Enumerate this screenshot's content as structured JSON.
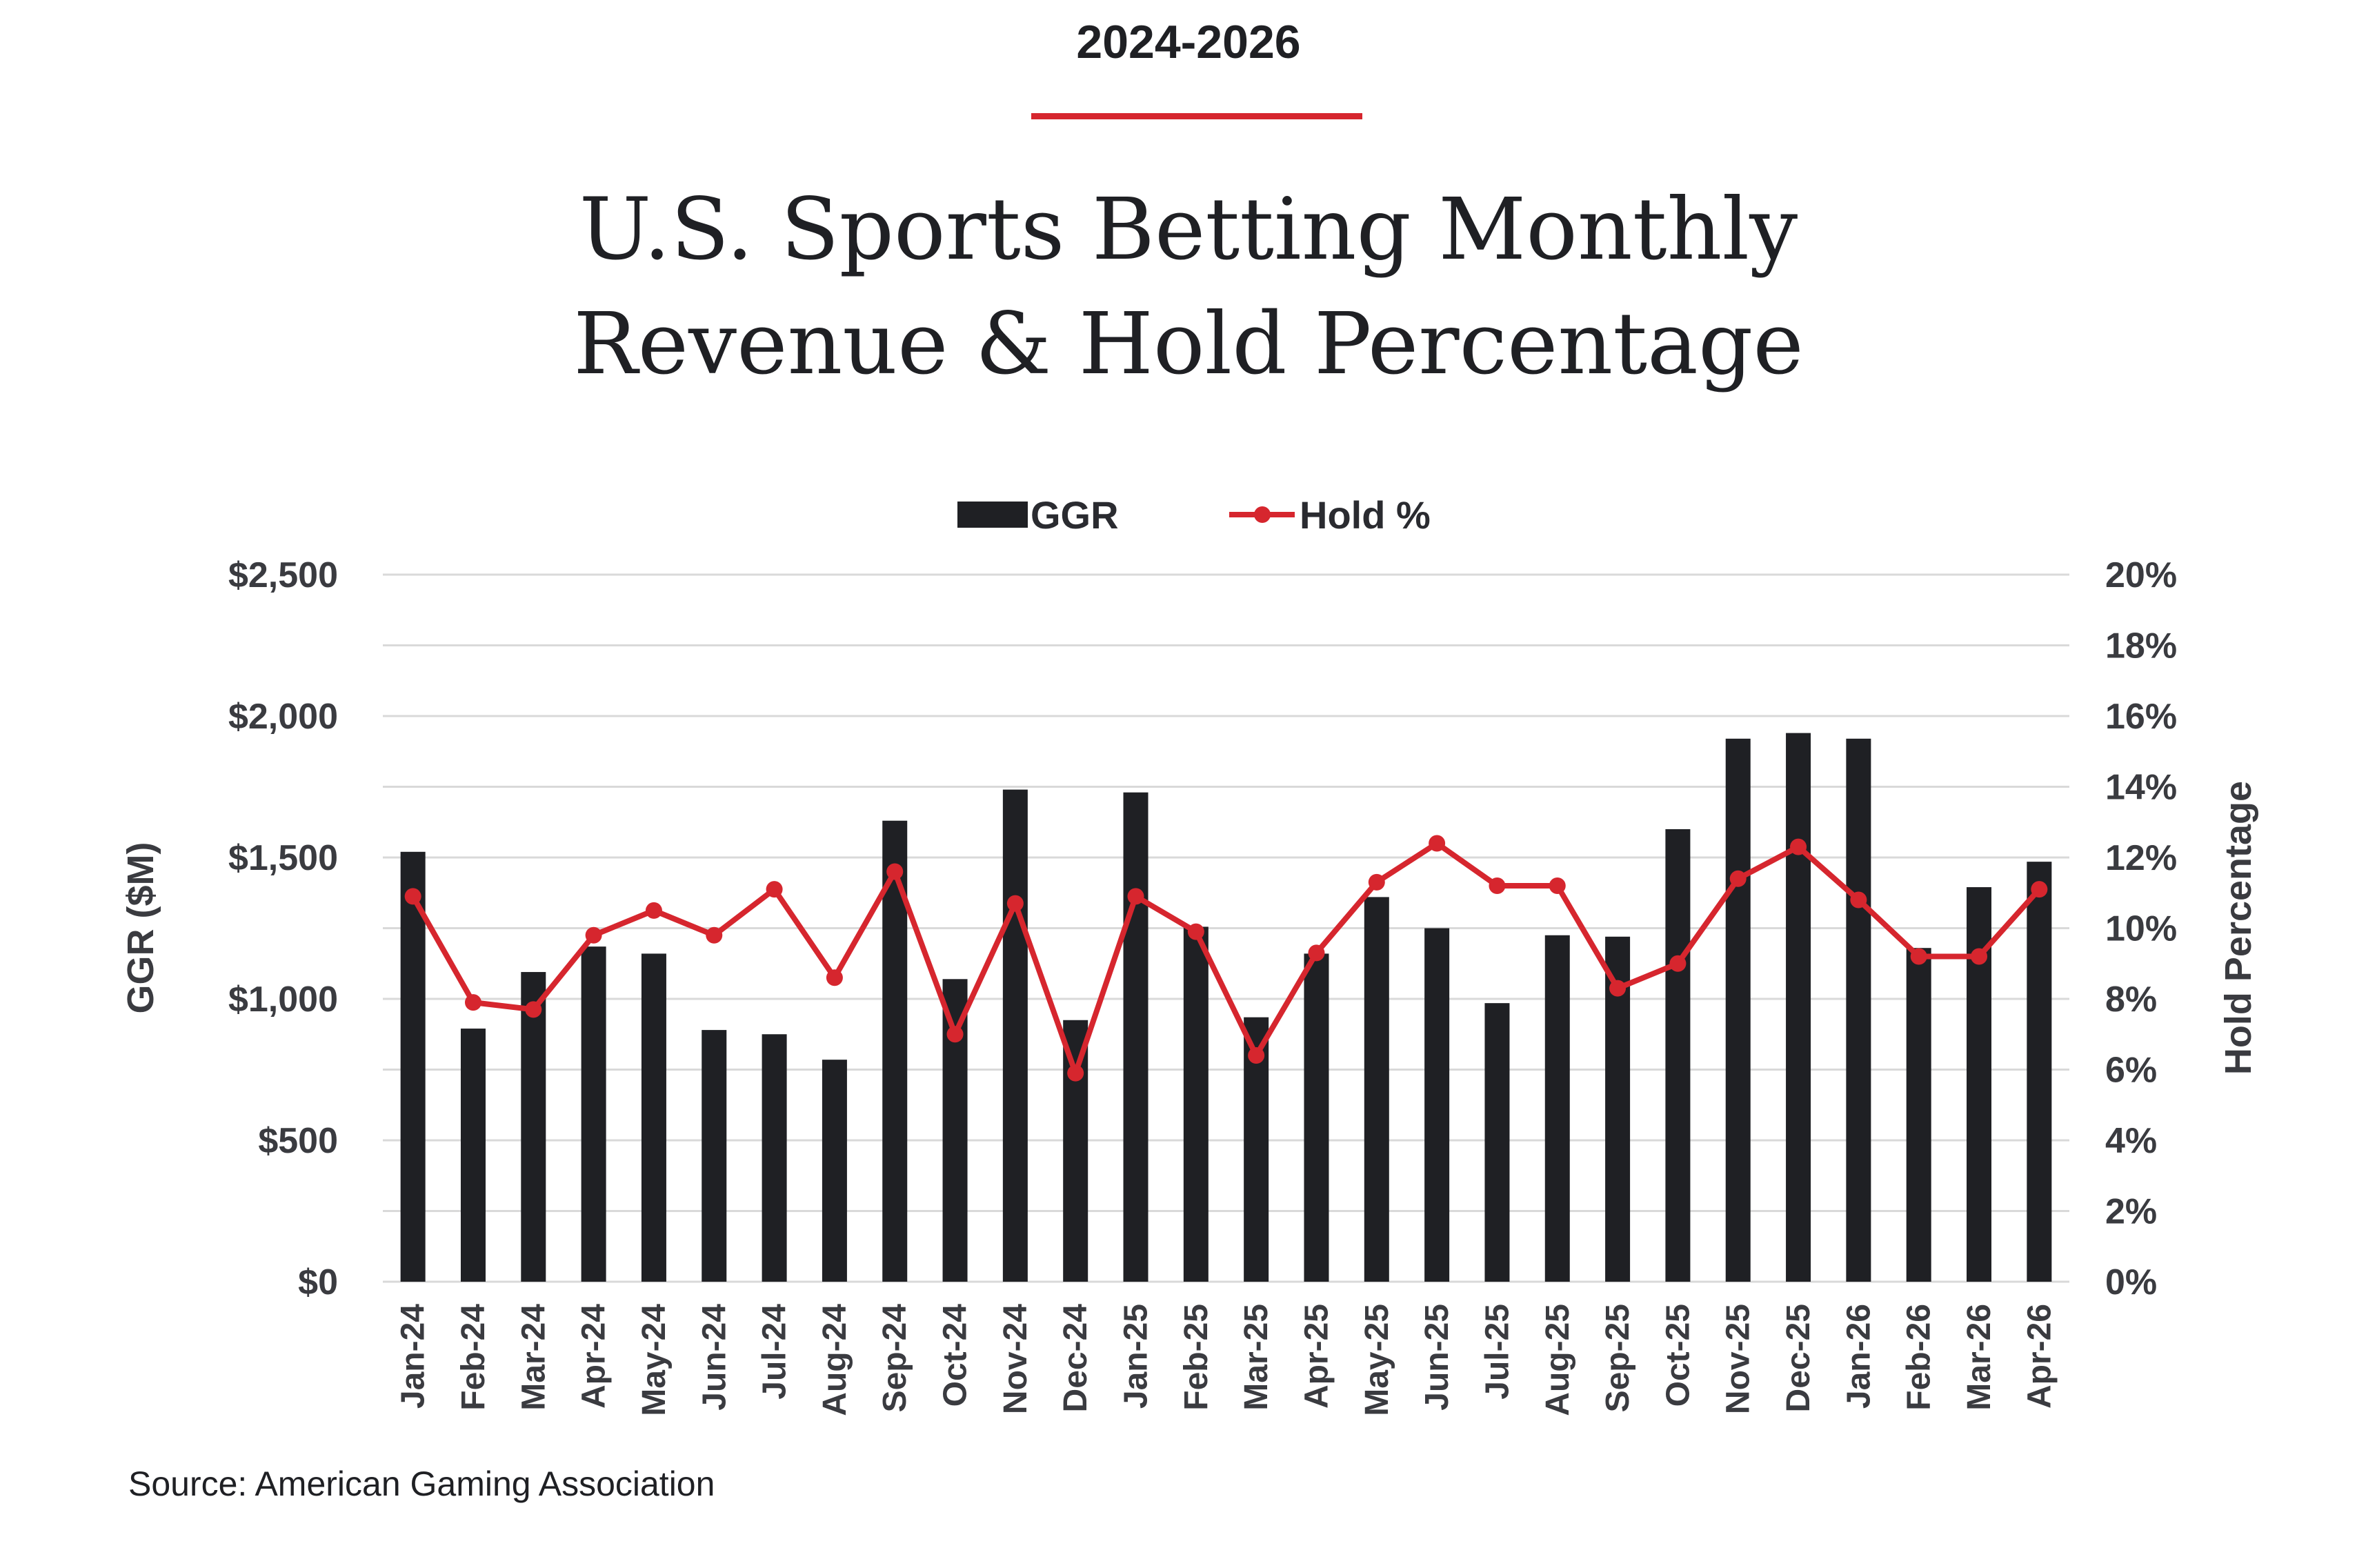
{
  "header": {
    "kicker": "2024-2026",
    "title_line1": "U.S. Sports Betting Monthly",
    "title_line2": "Revenue & Hold Percentage"
  },
  "footer": {
    "source": "Source: American Gaming Association"
  },
  "colors": {
    "bar": "#1f2024",
    "line": "#d6262e",
    "grid": "#d9d9d9",
    "accent_rule": "#d6262e"
  },
  "chart_data": {
    "type": "bar",
    "categories": [
      "Jan-24",
      "Feb-24",
      "Mar-24",
      "Apr-24",
      "May-24",
      "Jun-24",
      "Jul-24",
      "Aug-24",
      "Sep-24",
      "Oct-24",
      "Nov-24",
      "Dec-24",
      "Jan-25",
      "Feb-25",
      "Mar-25",
      "Apr-25",
      "May-25",
      "Jun-25",
      "Jul-25",
      "Aug-25",
      "Sep-25",
      "Oct-25",
      "Nov-25",
      "Dec-25",
      "Jan-26",
      "Feb-26",
      "Mar-26",
      "Apr-26"
    ],
    "series": [
      {
        "name": "GGR",
        "type": "bar",
        "axis": "left",
        "values": [
          1520,
          895,
          1095,
          1185,
          1160,
          890,
          875,
          785,
          1630,
          1070,
          1740,
          925,
          1730,
          1255,
          935,
          1160,
          1360,
          1250,
          985,
          1225,
          1220,
          1600,
          1920,
          1940,
          1920,
          1180,
          1395,
          1485
        ]
      },
      {
        "name": "Hold %",
        "type": "line",
        "axis": "right",
        "values": [
          10.9,
          7.9,
          7.7,
          9.8,
          10.5,
          9.8,
          11.1,
          8.6,
          11.6,
          7.0,
          10.7,
          5.9,
          10.9,
          9.9,
          6.4,
          9.3,
          11.3,
          12.4,
          11.2,
          11.2,
          8.3,
          9.0,
          11.4,
          12.3,
          10.8,
          9.2,
          9.2,
          11.1
        ]
      }
    ],
    "ylabel": "GGR ($M)",
    "y2label": "Hold Percentage",
    "ylim": [
      0,
      2500
    ],
    "y2lim": [
      0,
      20
    ],
    "yticks": [
      "$0",
      "$500",
      "$1,000",
      "$1,500",
      "$2,000",
      "$2,500"
    ],
    "y2ticks": [
      "0%",
      "2%",
      "4%",
      "6%",
      "8%",
      "10%",
      "12%",
      "14%",
      "16%",
      "18%",
      "20%"
    ],
    "grid": true,
    "legend": "top-center"
  }
}
